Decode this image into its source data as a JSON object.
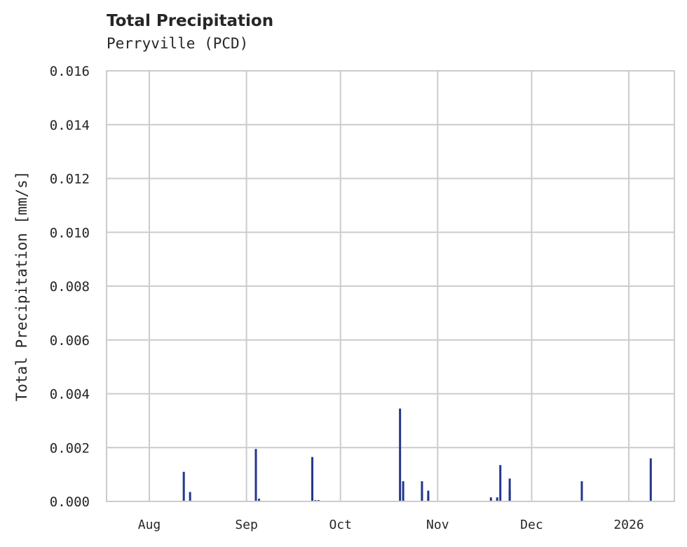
{
  "chart_data": {
    "type": "bar",
    "title": "Total Precipitation",
    "subtitle": "Perryville (PCD)",
    "xlabel": "",
    "ylabel": "Total Precipitation [mm/s]",
    "ylim": [
      0,
      0.016
    ],
    "yticks": [
      "0.000",
      "0.002",
      "0.004",
      "0.006",
      "0.008",
      "0.010",
      "0.012",
      "0.014",
      "0.016"
    ],
    "xticks": [
      "Aug",
      "Sep",
      "Oct",
      "Nov",
      "Dec",
      "2026"
    ],
    "grid": true,
    "series_color": "#24368c",
    "series": [
      {
        "name": "Total Precipitation",
        "points": [
          {
            "date": "2025-08-12",
            "value": 0.0011
          },
          {
            "date": "2025-08-14",
            "value": 0.00035
          },
          {
            "date": "2025-09-04",
            "value": 0.00195
          },
          {
            "date": "2025-09-05",
            "value": 0.0001
          },
          {
            "date": "2025-09-22",
            "value": 0.00165
          },
          {
            "date": "2025-09-22",
            "value": 0.0007
          },
          {
            "date": "2025-09-23",
            "value": 5e-05
          },
          {
            "date": "2025-09-24",
            "value": 5e-05
          },
          {
            "date": "2025-10-20",
            "value": 0.00345
          },
          {
            "date": "2025-10-21",
            "value": 0.00075
          },
          {
            "date": "2025-10-27",
            "value": 0.00075
          },
          {
            "date": "2025-10-27",
            "value": 0.0004
          },
          {
            "date": "2025-10-29",
            "value": 0.0004
          },
          {
            "date": "2025-10-29",
            "value": 0.0002
          },
          {
            "date": "2025-11-18",
            "value": 0.00015
          },
          {
            "date": "2025-11-20",
            "value": 0.00015
          },
          {
            "date": "2025-11-21",
            "value": 0.00135
          },
          {
            "date": "2025-11-24",
            "value": 0.00085
          },
          {
            "date": "2025-11-24",
            "value": 0.0004
          },
          {
            "date": "2025-12-17",
            "value": 0.00075
          },
          {
            "date": "2026-01-08",
            "value": 0.0016
          }
        ]
      }
    ]
  }
}
